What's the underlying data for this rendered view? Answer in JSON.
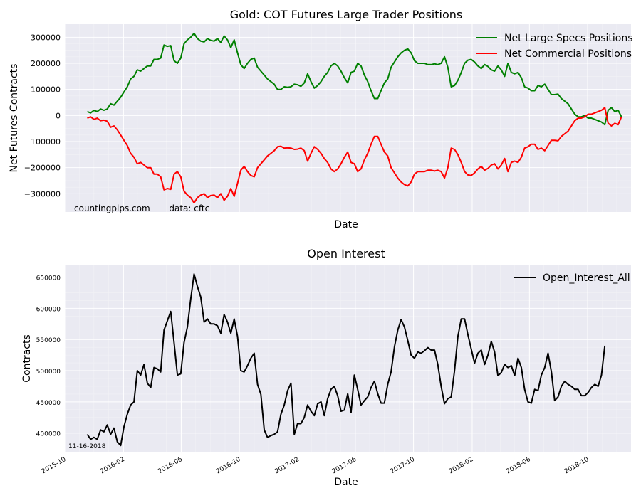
{
  "chart_data": [
    {
      "type": "line",
      "title": "Gold: COT Futures Large Trader Positions",
      "xlabel": "Date",
      "ylabel": "Net Futures Contracts",
      "ylim": [
        -370000,
        350000
      ],
      "yticks": [
        300000,
        200000,
        100000,
        0,
        -100000,
        -200000,
        -300000
      ],
      "ytick_labels": [
        "300000",
        "200000",
        "100000",
        "0",
        "−100000",
        "−200000",
        "−300000"
      ],
      "xlim": [
        "2015-10-01",
        "2018-12-31"
      ],
      "grid": true,
      "legend_position": "top-right",
      "annotation": "countingpips.com       data: cftc",
      "series": [
        {
          "name": "Net Large Specs Positions",
          "color": "#008000",
          "start_date": "2015-11-17",
          "values": [
            15000,
            10000,
            20000,
            15000,
            25000,
            20000,
            25000,
            45000,
            40000,
            55000,
            70000,
            90000,
            110000,
            140000,
            150000,
            175000,
            170000,
            180000,
            190000,
            190000,
            215000,
            215000,
            220000,
            270000,
            265000,
            268000,
            210000,
            200000,
            220000,
            275000,
            290000,
            300000,
            315000,
            295000,
            285000,
            282000,
            295000,
            288000,
            285000,
            295000,
            280000,
            305000,
            290000,
            260000,
            290000,
            240000,
            195000,
            180000,
            200000,
            215000,
            220000,
            185000,
            170000,
            155000,
            140000,
            130000,
            120000,
            100000,
            100000,
            110000,
            108000,
            110000,
            120000,
            118000,
            112000,
            125000,
            160000,
            130000,
            105000,
            115000,
            130000,
            150000,
            165000,
            190000,
            200000,
            190000,
            170000,
            145000,
            125000,
            165000,
            170000,
            200000,
            190000,
            155000,
            130000,
            95000,
            65000,
            65000,
            95000,
            125000,
            140000,
            185000,
            205000,
            225000,
            240000,
            250000,
            255000,
            240000,
            210000,
            200000,
            200000,
            200000,
            195000,
            195000,
            198000,
            195000,
            200000,
            225000,
            185000,
            110000,
            115000,
            135000,
            165000,
            200000,
            212000,
            215000,
            205000,
            190000,
            180000,
            195000,
            188000,
            175000,
            170000,
            190000,
            175000,
            150000,
            200000,
            165000,
            160000,
            165000,
            145000,
            110000,
            105000,
            95000,
            95000,
            115000,
            110000,
            120000,
            100000,
            80000,
            80000,
            82000,
            65000,
            55000,
            45000,
            25000,
            5000,
            -5000,
            -5000,
            0,
            -10000,
            -10000,
            -15000,
            -20000,
            -25000,
            -35000,
            20000,
            30000,
            15000,
            20000,
            -5000
          ]
        },
        {
          "name": "Net Commercial Positions",
          "color": "#ff0000",
          "start_date": "2015-11-17",
          "values": [
            -10000,
            -5000,
            -15000,
            -10000,
            -20000,
            -18000,
            -22000,
            -45000,
            -40000,
            -55000,
            -75000,
            -95000,
            -115000,
            -145000,
            -160000,
            -185000,
            -180000,
            -190000,
            -200000,
            -200000,
            -225000,
            -225000,
            -235000,
            -285000,
            -280000,
            -283000,
            -225000,
            -215000,
            -235000,
            -290000,
            -305000,
            -315000,
            -335000,
            -315000,
            -305000,
            -300000,
            -315000,
            -307000,
            -305000,
            -315000,
            -300000,
            -325000,
            -310000,
            -280000,
            -310000,
            -260000,
            -210000,
            -195000,
            -215000,
            -230000,
            -235000,
            -200000,
            -185000,
            -170000,
            -155000,
            -145000,
            -135000,
            -120000,
            -118000,
            -125000,
            -124000,
            -125000,
            -130000,
            -129000,
            -125000,
            -135000,
            -175000,
            -145000,
            -120000,
            -130000,
            -145000,
            -165000,
            -180000,
            -205000,
            -215000,
            -205000,
            -185000,
            -160000,
            -140000,
            -180000,
            -185000,
            -215000,
            -205000,
            -170000,
            -145000,
            -110000,
            -80000,
            -80000,
            -110000,
            -140000,
            -155000,
            -200000,
            -220000,
            -240000,
            -255000,
            -265000,
            -270000,
            -255000,
            -225000,
            -215000,
            -215000,
            -215000,
            -210000,
            -210000,
            -213000,
            -210000,
            -215000,
            -240000,
            -200000,
            -125000,
            -130000,
            -150000,
            -180000,
            -215000,
            -228000,
            -230000,
            -220000,
            -205000,
            -195000,
            -210000,
            -203000,
            -190000,
            -185000,
            -205000,
            -190000,
            -165000,
            -215000,
            -180000,
            -175000,
            -180000,
            -160000,
            -125000,
            -120000,
            -110000,
            -110000,
            -130000,
            -125000,
            -135000,
            -115000,
            -95000,
            -95000,
            -97000,
            -80000,
            -70000,
            -60000,
            -40000,
            -20000,
            -10000,
            -10000,
            -5000,
            5000,
            5000,
            10000,
            15000,
            20000,
            30000,
            -30000,
            -40000,
            -30000,
            -35000,
            -5000
          ]
        }
      ]
    },
    {
      "type": "line",
      "title": "Open Interest",
      "xlabel": "Date",
      "ylabel": "Contracts",
      "ylim": [
        370000,
        670000
      ],
      "yticks": [
        650000,
        600000,
        550000,
        500000,
        450000,
        400000
      ],
      "ytick_labels": [
        "650000",
        "600000",
        "550000",
        "500000",
        "450000",
        "400000"
      ],
      "xlim": [
        "2015-10-01",
        "2018-12-31"
      ],
      "xtick_labels": [
        "2015-10",
        "2016-02",
        "2016-06",
        "2016-10",
        "2017-02",
        "2017-06",
        "2017-10",
        "2018-02",
        "2018-06",
        "2018-10"
      ],
      "grid": true,
      "legend_position": "top-right",
      "annotation": "11-16-2018",
      "series": [
        {
          "name": "Open_Interest_All",
          "color": "#000000",
          "start_date": "2015-11-17",
          "values": [
            398000,
            390000,
            393000,
            390000,
            405000,
            402000,
            413000,
            398000,
            408000,
            386000,
            380000,
            410000,
            430000,
            445000,
            450000,
            500000,
            493000,
            510000,
            480000,
            473000,
            505000,
            503000,
            498000,
            565000,
            580000,
            595000,
            545000,
            493000,
            495000,
            545000,
            570000,
            615000,
            655000,
            635000,
            618000,
            578000,
            583000,
            575000,
            575000,
            572000,
            560000,
            590000,
            578000,
            560000,
            583000,
            555000,
            500000,
            498000,
            508000,
            520000,
            528000,
            478000,
            462000,
            405000,
            393000,
            396000,
            398000,
            402000,
            430000,
            445000,
            468000,
            480000,
            398000,
            415000,
            415000,
            425000,
            445000,
            435000,
            428000,
            447000,
            450000,
            428000,
            455000,
            470000,
            475000,
            460000,
            435000,
            437000,
            463000,
            433000,
            493000,
            470000,
            445000,
            452000,
            458000,
            473000,
            483000,
            463000,
            448000,
            448000,
            478000,
            498000,
            538000,
            565000,
            582000,
            570000,
            548000,
            525000,
            520000,
            530000,
            528000,
            532000,
            537000,
            533000,
            533000,
            510000,
            475000,
            447000,
            455000,
            458000,
            500000,
            555000,
            583000,
            583000,
            558000,
            535000,
            512000,
            528000,
            533000,
            510000,
            525000,
            547000,
            530000,
            492000,
            497000,
            510000,
            505000,
            508000,
            492000,
            520000,
            505000,
            470000,
            450000,
            448000,
            470000,
            468000,
            493000,
            505000,
            528000,
            498000,
            452000,
            458000,
            475000,
            483000,
            478000,
            475000,
            470000,
            470000,
            460000,
            460000,
            465000,
            473000,
            478000,
            475000,
            493000,
            540000
          ]
        }
      ]
    }
  ]
}
